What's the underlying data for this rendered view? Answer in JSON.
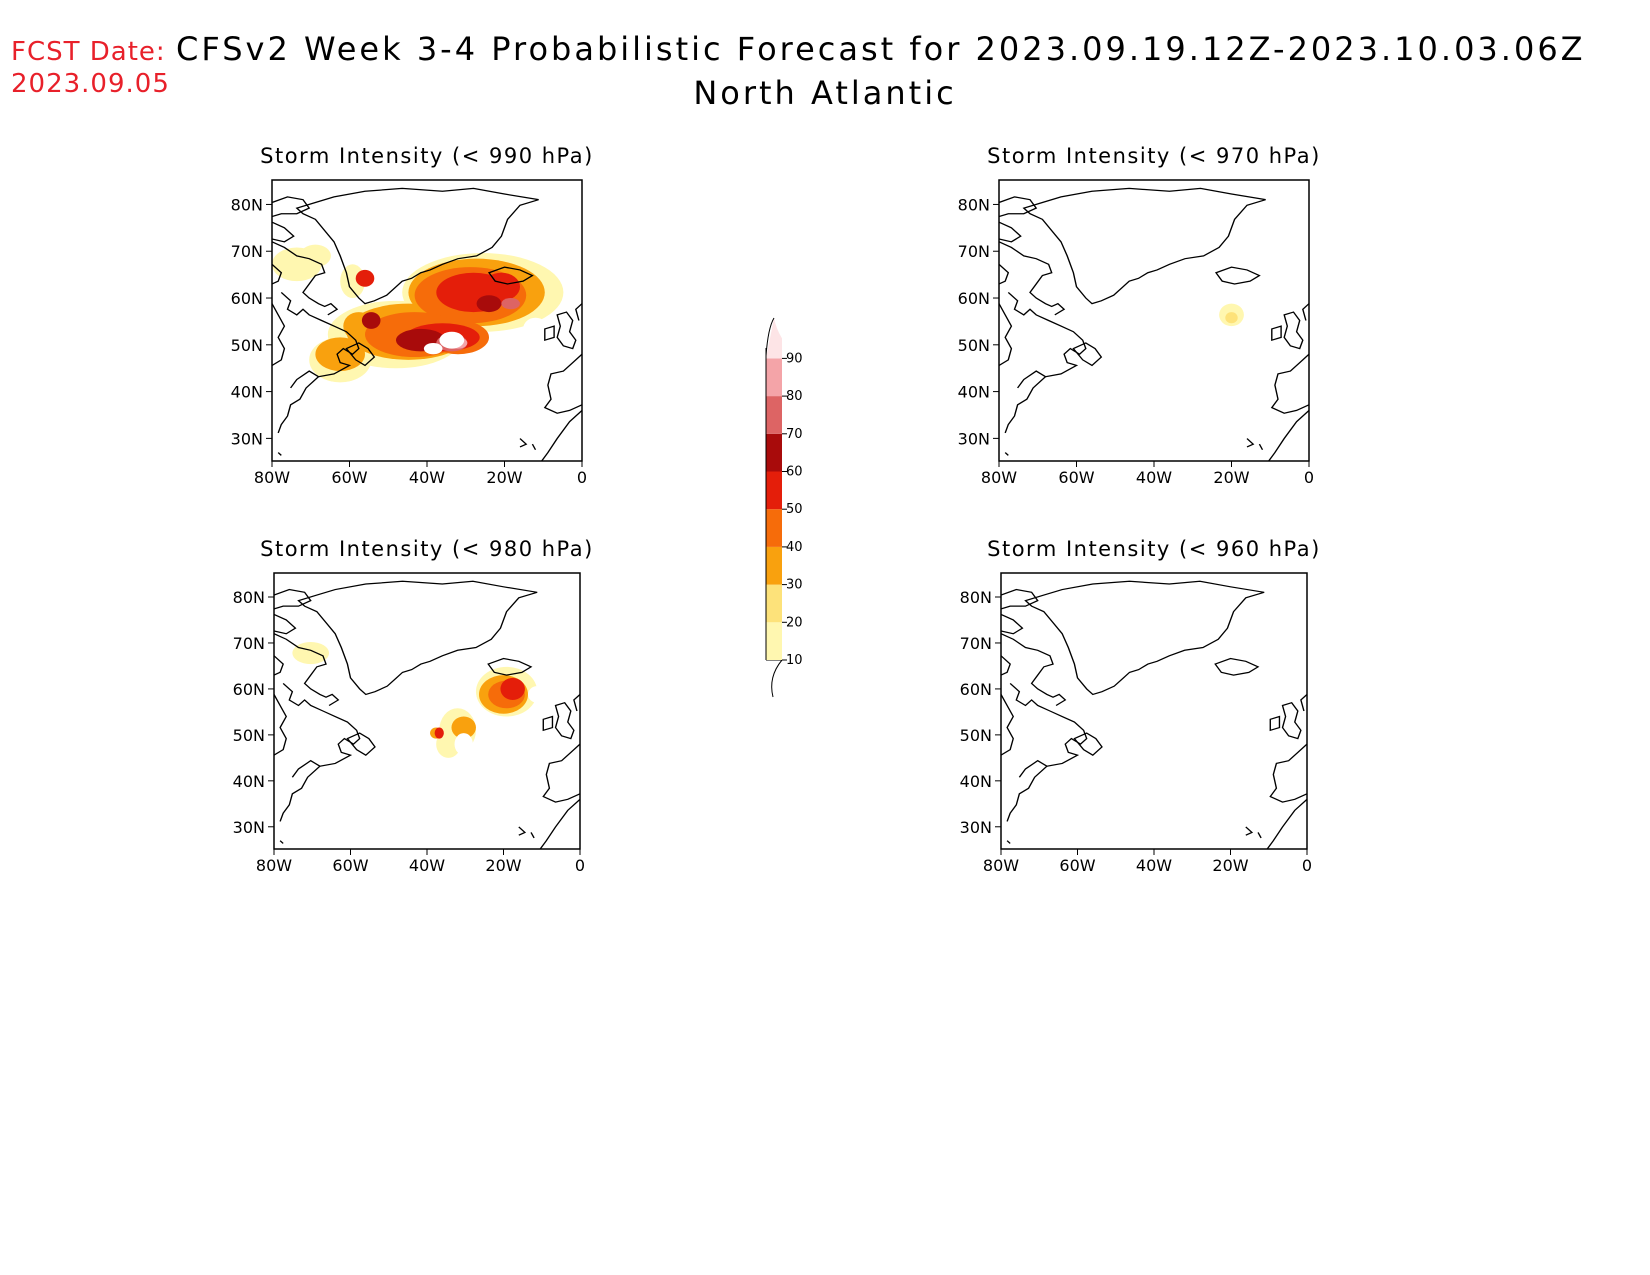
{
  "header": {
    "fcst_label": "FCST Date:",
    "fcst_date": "2023.09.05",
    "title": "CFSv2 Week 3-4 Probabilistic Forecast for 2023.09.19.12Z-2023.10.03.06Z",
    "subtitle": "North Atlantic"
  },
  "lat_labels": [
    "80N",
    "70N",
    "60N",
    "50N",
    "40N",
    "30N"
  ],
  "lon_labels": [
    "80W",
    "60W",
    "40W",
    "20W",
    "0"
  ],
  "panels": [
    {
      "id": "p990",
      "title": "Storm Intensity (< 990 hPa)"
    },
    {
      "id": "p970",
      "title": "Storm Intensity (< 970 hPa)"
    },
    {
      "id": "p980",
      "title": "Storm Intensity (< 980 hPa)"
    },
    {
      "id": "p960",
      "title": "Storm Intensity (< 960 hPa)"
    }
  ],
  "colorbar": {
    "levels": [
      "10",
      "20",
      "30",
      "40",
      "50",
      "60",
      "70",
      "80",
      "90"
    ],
    "colors": [
      "#fff7b0",
      "#fde27a",
      "#f9a10e",
      "#f66c0a",
      "#e41e0a",
      "#a80b0b",
      "#dd6464",
      "#f4a4a8",
      "#fde4e6"
    ]
  }
}
